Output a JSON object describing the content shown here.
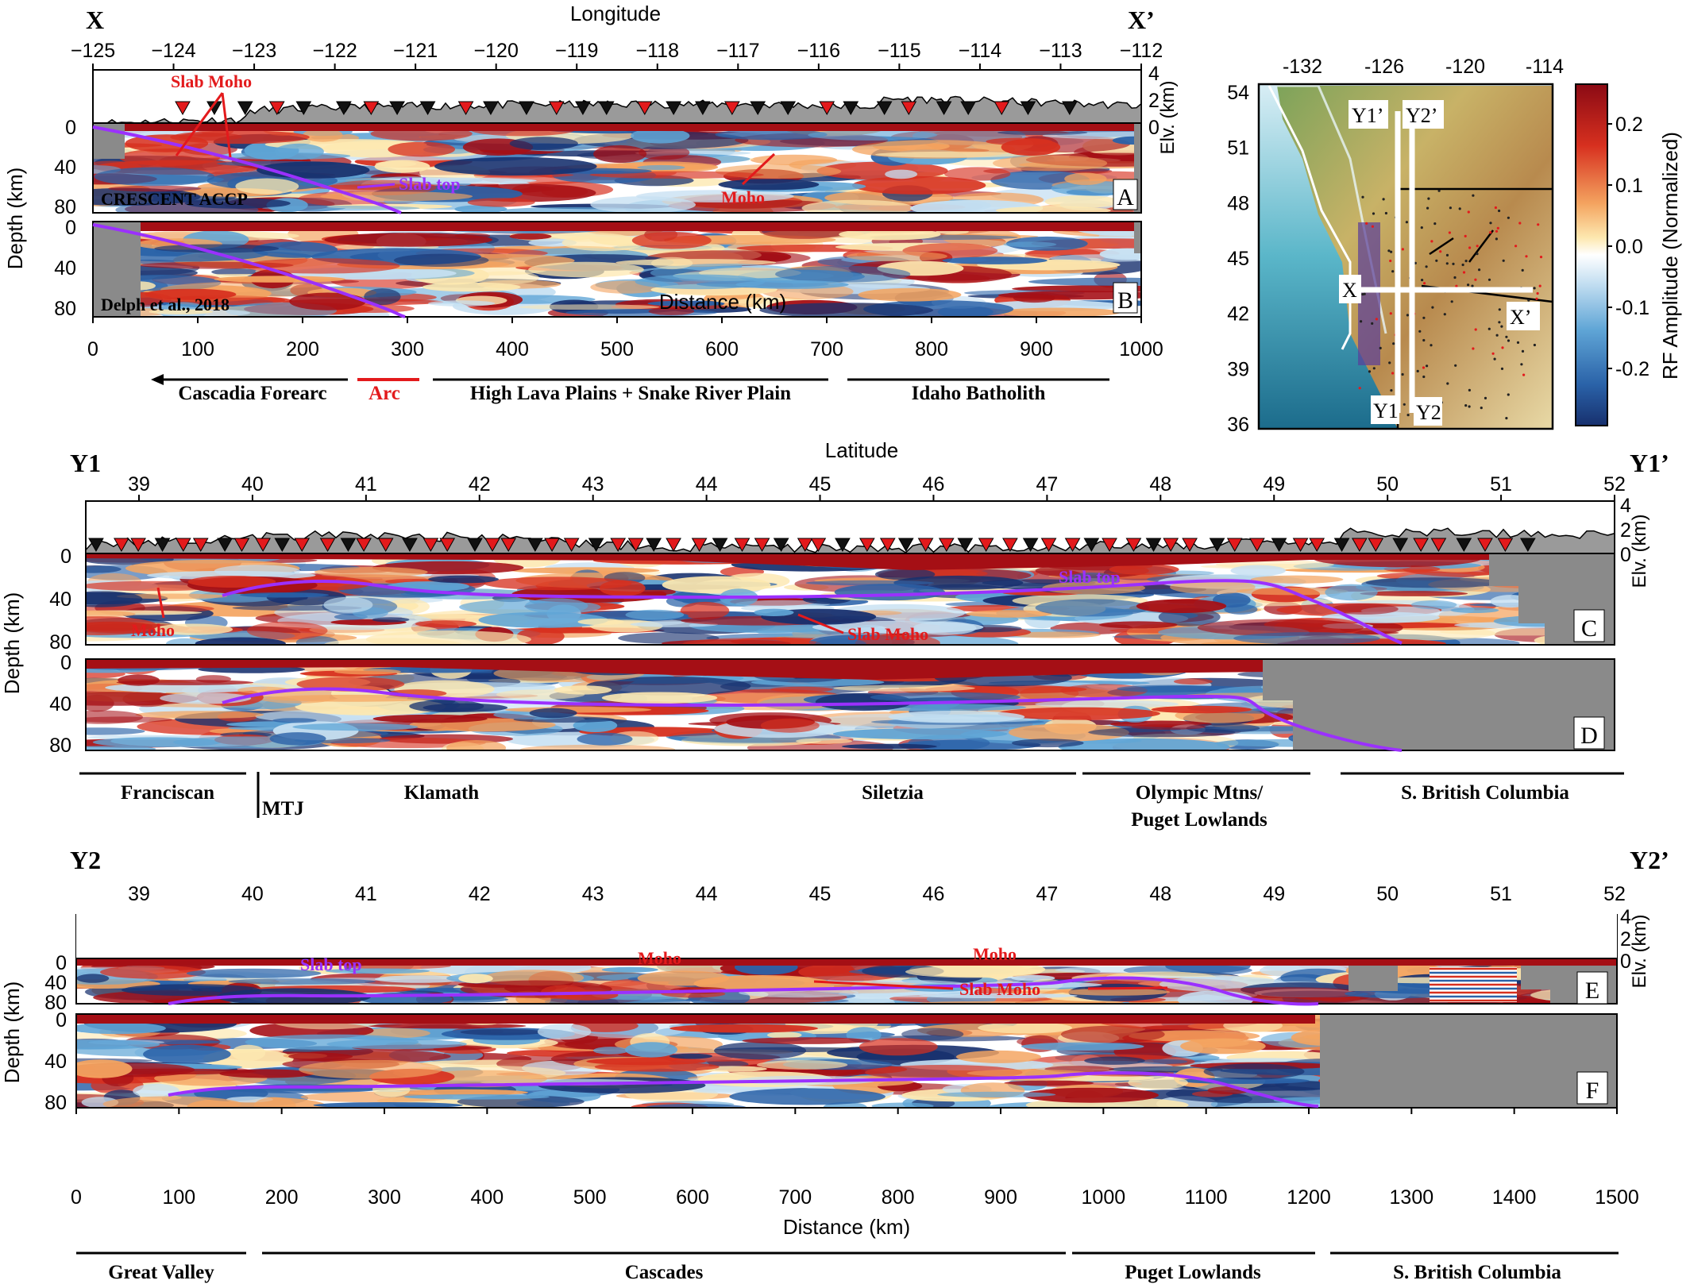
{
  "colors": {
    "slab_top": "#9b30ff",
    "annotation": "#e31a1c",
    "terrain": "#8c8c8c",
    "mask": "#8a8a8a",
    "rf_pos": "#a50f15",
    "rf_neg": "#1a3d8a",
    "region_bar": "#000000",
    "arc_bar": "#e31a1c"
  },
  "top_section": {
    "left_label": "X",
    "right_label": "X’",
    "axis_title": "Longitude",
    "longitudes": [
      "−125",
      "−124",
      "−123",
      "−122",
      "−121",
      "−120",
      "−119",
      "−118",
      "−117",
      "−116",
      "−115",
      "−114",
      "−113",
      "−112"
    ],
    "elev_ticks": [
      "4",
      "2",
      "0"
    ],
    "elev_label": "Elv. (km)",
    "depth_ticks": [
      "0",
      "40",
      "80"
    ],
    "depth_label": "Depth (km)",
    "distance_label": "Distance (km)",
    "distance_ticks": [
      "0",
      "100",
      "200",
      "300",
      "400",
      "500",
      "600",
      "700",
      "800",
      "900",
      "1000"
    ],
    "annotations": {
      "slab_moho": "Slab Moho",
      "slab_top": "Slab top",
      "moho": "Moho",
      "crescent": "CRESCENT ACCP",
      "delph": "Delph et al., 2018"
    },
    "panel_a": "A",
    "panel_b": "B",
    "regions": [
      "Cascadia Forearc",
      "Arc",
      "High Lava Plains + Snake River Plain",
      "Idaho Batholith"
    ]
  },
  "map": {
    "lon_ticks": [
      "-132",
      "-126",
      "-120",
      "-114"
    ],
    "lat_ticks": [
      "54",
      "51",
      "48",
      "45",
      "42",
      "39",
      "36"
    ],
    "labels": {
      "y1p": "Y1’",
      "y2p": "Y2’",
      "x": "X",
      "xp": "X’",
      "y1": "Y1",
      "y2": "Y2"
    },
    "colorbar_ticks": [
      "0.2",
      "0.1",
      "0.0",
      "-0.1",
      "-0.2"
    ],
    "colorbar_label": "RF Amplitude (Normalized)"
  },
  "mid_section": {
    "left_label": "Y1",
    "right_label": "Y1’",
    "axis_title": "Latitude",
    "latitudes": [
      "39",
      "40",
      "41",
      "42",
      "43",
      "44",
      "45",
      "46",
      "47",
      "48",
      "49",
      "50",
      "51",
      "52"
    ],
    "elev_ticks": [
      "4",
      "2",
      "0"
    ],
    "elev_label": "Elv. (km)",
    "depth_ticks": [
      "0",
      "40",
      "80"
    ],
    "depth_label": "Depth (km)",
    "annotations": {
      "moho": "Moho",
      "slab_moho": "Slab Moho",
      "slab_top": "Slab top"
    },
    "panel_c": "C",
    "panel_d": "D",
    "regions": [
      "Franciscan",
      "MTJ",
      "Klamath",
      "Siletzia",
      "Olympic Mtns/",
      "Puget Lowlands",
      "S. British Columbia"
    ]
  },
  "bot_section": {
    "left_label": "Y2",
    "right_label": "Y2’",
    "latitudes": [
      "39",
      "40",
      "41",
      "42",
      "43",
      "44",
      "45",
      "46",
      "47",
      "48",
      "49",
      "50",
      "51",
      "52"
    ],
    "elev_ticks": [
      "4",
      "2",
      "0"
    ],
    "elev_label": "Elv. (km)",
    "depth_ticks": [
      "0",
      "40",
      "80"
    ],
    "depth_label": "Depth (km)",
    "annotations": {
      "moho1": "Moho",
      "moho2": "Moho",
      "slab_top": "Slab top",
      "slab_moho": "Slab Moho"
    },
    "panel_e": "E",
    "panel_f": "F",
    "distance_label": "Distance (km)",
    "distance_ticks": [
      "0",
      "100",
      "200",
      "300",
      "400",
      "500",
      "600",
      "700",
      "800",
      "900",
      "1000",
      "1100",
      "1200",
      "1300",
      "1400",
      "1500"
    ],
    "regions": [
      "Great Valley",
      "Cascades",
      "Puget Lowlands",
      "S. British Columbia"
    ]
  }
}
